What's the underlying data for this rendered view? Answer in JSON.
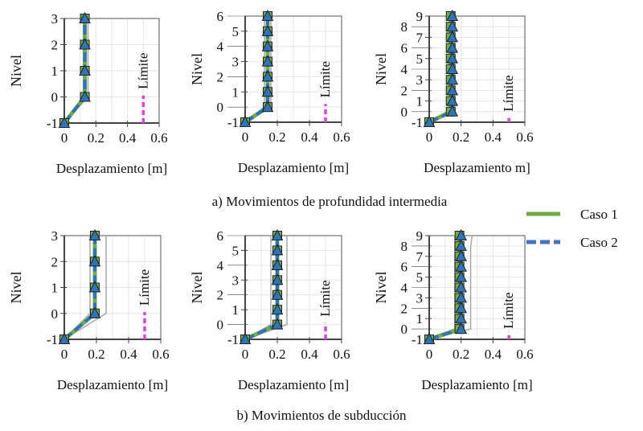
{
  "legend": {
    "position": "right",
    "items": [
      {
        "label": "Caso 1",
        "color": "#70ad47",
        "style": "solid"
      },
      {
        "label": "Caso 2",
        "color": "#4472c4",
        "style": "dashed"
      }
    ]
  },
  "captions": [
    "a) Movimientos de profundidad intermedia",
    "b) Movimientos de subducción"
  ],
  "colors": {
    "case1": "#70ad47",
    "case2": "#2e75b6",
    "limit": "#e040e0",
    "envelope": "#a6a6a6",
    "grid": "#e6e6e6"
  },
  "chart_data": [
    {
      "type": "line",
      "ylabel": "Nivel",
      "xlabel": "Desplazamiento [m]",
      "xlim": [
        0,
        0.6
      ],
      "ylim": [
        -1,
        3
      ],
      "xticks": [
        "0",
        "0.2",
        "0.4",
        "0.6"
      ],
      "yticks": [
        "-1",
        "0",
        "1",
        "2",
        "3"
      ],
      "grid": true,
      "limit": {
        "label": "Límite",
        "x": 0.5,
        "y": [
          -1,
          0.05
        ]
      },
      "levels": [
        -1,
        0,
        1,
        2,
        3
      ],
      "series": [
        {
          "values": [
            0,
            0.13,
            0.13,
            0.13,
            0.13
          ]
        },
        {
          "values": [
            0,
            0.13,
            0.13,
            0.13,
            0.13
          ]
        }
      ],
      "envelope": {
        "min": [
          0,
          0.12,
          0.12,
          0.12,
          0.12
        ],
        "max": [
          0,
          0.15,
          0.15,
          0.15,
          0.15
        ]
      }
    },
    {
      "type": "line",
      "ylabel": "Nivel",
      "xlabel": "Desplazamiento [m]",
      "xlim": [
        0,
        0.6
      ],
      "ylim": [
        -1,
        6
      ],
      "xticks": [
        "0",
        "0.2",
        "0.4",
        "0.6"
      ],
      "yticks": [
        "-1",
        "0",
        "1",
        "2",
        "3",
        "4",
        "5",
        "6"
      ],
      "grid": true,
      "limit": {
        "label": "Límite",
        "x": 0.5,
        "y": [
          -1,
          0.2
        ]
      },
      "levels": [
        -1,
        0,
        1,
        2,
        3,
        4,
        5,
        6
      ],
      "series": [
        {
          "values": [
            0,
            0.14,
            0.14,
            0.14,
            0.14,
            0.14,
            0.14,
            0.14
          ]
        },
        {
          "values": [
            0,
            0.14,
            0.14,
            0.14,
            0.14,
            0.14,
            0.14,
            0.14
          ]
        }
      ],
      "envelope": {
        "min": [
          0,
          0.12,
          0.12,
          0.12,
          0.12,
          0.12,
          0.12,
          0.12
        ],
        "max": [
          0,
          0.16,
          0.16,
          0.16,
          0.16,
          0.16,
          0.16,
          0.16
        ]
      }
    },
    {
      "type": "line",
      "ylabel": "Nivel",
      "xlabel": "Desplazamiento m]",
      "xlim": [
        0,
        0.6
      ],
      "ylim": [
        -1,
        9
      ],
      "xticks": [
        "0",
        "0.2",
        "0.4",
        "0.6"
      ],
      "yticks": [
        "-1",
        "0",
        "1",
        "2",
        "3",
        "4",
        "5",
        "6",
        "7",
        "8",
        "9"
      ],
      "grid": true,
      "limit": {
        "label": "Límite",
        "x": 0.5,
        "y": [
          -1,
          -0.6
        ]
      },
      "levels": [
        -1,
        0,
        1,
        2,
        3,
        4,
        5,
        6,
        7,
        8,
        9
      ],
      "series": [
        {
          "values": [
            0,
            0.135,
            0.135,
            0.135,
            0.135,
            0.135,
            0.135,
            0.135,
            0.135,
            0.135,
            0.135
          ]
        },
        {
          "values": [
            0,
            0.145,
            0.145,
            0.145,
            0.145,
            0.145,
            0.145,
            0.145,
            0.145,
            0.145,
            0.145
          ]
        }
      ],
      "envelope": {
        "min": [
          0,
          0.13,
          0.13,
          0.13,
          0.13,
          0.13,
          0.13,
          0.13,
          0.13,
          0.13,
          0.13
        ],
        "max": [
          0,
          0.16,
          0.16,
          0.16,
          0.16,
          0.16,
          0.16,
          0.16,
          0.16,
          0.16,
          0.16
        ]
      }
    },
    {
      "type": "line",
      "ylabel": "Nivel",
      "xlabel": "Desplazamiento [m]",
      "xlim": [
        0,
        0.6
      ],
      "ylim": [
        -1,
        3
      ],
      "xticks": [
        "0",
        "0.2",
        "0.4",
        "0.6"
      ],
      "yticks": [
        "-1",
        "0",
        "1",
        "2",
        "3"
      ],
      "grid": true,
      "limit": {
        "label": "Límite",
        "x": 0.5,
        "y": [
          -1,
          0.05
        ]
      },
      "levels": [
        -1,
        0,
        1,
        2,
        3
      ],
      "series": [
        {
          "values": [
            0,
            0.19,
            0.19,
            0.19,
            0.19
          ]
        },
        {
          "values": [
            0,
            0.19,
            0.19,
            0.19,
            0.19
          ]
        }
      ],
      "envelope": {
        "min": [
          0,
          0.16,
          0.16,
          0.16,
          0.16
        ],
        "max": [
          0,
          0.26,
          0.26,
          0.26,
          0.26
        ]
      }
    },
    {
      "type": "line",
      "ylabel": "Nivel",
      "xlabel": "Desplazamiento [m]",
      "xlim": [
        0,
        0.6
      ],
      "ylim": [
        -1,
        6
      ],
      "xticks": [
        "0",
        "0.2",
        "0.4",
        "0.6"
      ],
      "yticks": [
        "-1",
        "0",
        "1",
        "2",
        "3",
        "4",
        "5",
        "6"
      ],
      "grid": true,
      "limit": {
        "label": "Límite",
        "x": 0.5,
        "y": [
          -1,
          0.1
        ]
      },
      "levels": [
        -1,
        0,
        1,
        2,
        3,
        4,
        5,
        6
      ],
      "series": [
        {
          "values": [
            0,
            0.2,
            0.2,
            0.2,
            0.2,
            0.2,
            0.2,
            0.2
          ]
        },
        {
          "values": [
            0,
            0.2,
            0.2,
            0.2,
            0.2,
            0.2,
            0.2,
            0.2
          ]
        }
      ],
      "envelope": {
        "min": [
          0,
          0.16,
          0.16,
          0.16,
          0.16,
          0.16,
          0.16,
          0.16
        ],
        "max": [
          0,
          0.26,
          0.26,
          0.26,
          0.26,
          0.26,
          0.26,
          0.26
        ]
      }
    },
    {
      "type": "line",
      "ylabel": "Nivel",
      "xlabel": "Desplazamiento [m]",
      "xlim": [
        0,
        0.6
      ],
      "ylim": [
        -1,
        9
      ],
      "xticks": [
        "0",
        "0.2",
        "0.4",
        "0.6"
      ],
      "yticks": [
        "-1",
        "0",
        "1",
        "2",
        "3",
        "4",
        "5",
        "6",
        "7",
        "8",
        "9"
      ],
      "grid": true,
      "limit": {
        "label": "Límite",
        "x": 0.5,
        "y": [
          -1,
          -0.6
        ]
      },
      "levels": [
        -1,
        0,
        1,
        2,
        3,
        4,
        5,
        6,
        7,
        8,
        9
      ],
      "series": [
        {
          "values": [
            0,
            0.19,
            0.19,
            0.19,
            0.19,
            0.19,
            0.19,
            0.19,
            0.19,
            0.19,
            0.19
          ]
        },
        {
          "values": [
            0,
            0.2,
            0.2,
            0.2,
            0.2,
            0.2,
            0.2,
            0.2,
            0.2,
            0.2,
            0.2
          ]
        }
      ],
      "envelope": {
        "min": [
          0,
          0.16,
          0.16,
          0.16,
          0.16,
          0.16,
          0.16,
          0.16,
          0.16,
          0.16,
          0.16
        ],
        "max": [
          0,
          0.26,
          0.26,
          0.26,
          0.26,
          0.26,
          0.26,
          0.26,
          0.26,
          0.26,
          0.27
        ]
      }
    }
  ]
}
